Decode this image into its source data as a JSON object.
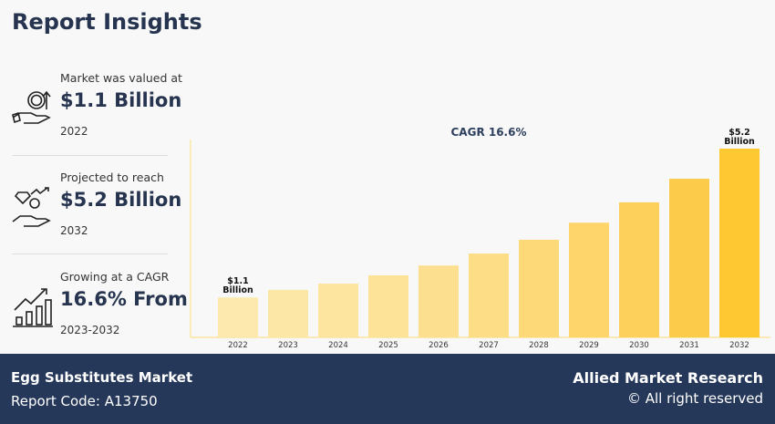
{
  "title": "Report Insights",
  "stats": [
    {
      "label": "Market was valued at",
      "value": "$1.1 Billion",
      "sub": "2022",
      "icon": "money-hand-icon"
    },
    {
      "label": "Projected to reach",
      "value": "$5.2 Billion",
      "sub": "2032",
      "icon": "diamond-hand-icon"
    },
    {
      "label": "Growing at a CAGR",
      "value": "16.6% From",
      "sub": "2023-2032",
      "icon": "growth-chart-icon"
    }
  ],
  "chart_data": {
    "type": "bar",
    "title": "CAGR 16.6%",
    "categories": [
      "2022",
      "2023",
      "2024",
      "2025",
      "2026",
      "2027",
      "2028",
      "2029",
      "2030",
      "2031",
      "2032"
    ],
    "values": [
      1.1,
      1.31,
      1.48,
      1.71,
      1.98,
      2.31,
      2.69,
      3.16,
      3.72,
      4.37,
      5.2
    ],
    "unit": "Billion USD",
    "data_labels": {
      "2022": [
        "$1.1",
        "Billion"
      ],
      "2032": [
        "$5.2",
        "Billion"
      ]
    },
    "colors": [
      "#fde9ae",
      "#fde7a6",
      "#fde59f",
      "#fde398",
      "#fde08f",
      "#fddd85",
      "#fdd978",
      "#fdd56b",
      "#fdd05c",
      "#fdcb4a",
      "#fdc832"
    ],
    "grid": false
  },
  "footer": {
    "market": "Egg Substitutes Market",
    "report_code": "Report Code: A13750",
    "brand": "Allied Market Research",
    "rights": "© All right reserved"
  }
}
